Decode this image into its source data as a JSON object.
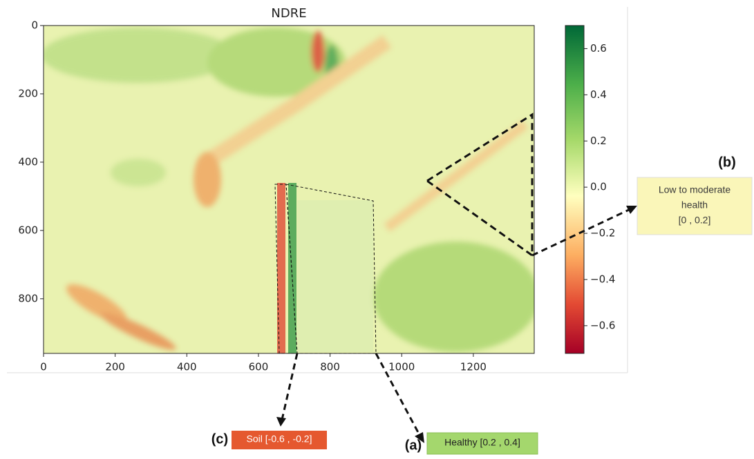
{
  "chart_data": {
    "type": "image",
    "title": "NDRE",
    "xlim": [
      0,
      1370
    ],
    "xticks": [
      0,
      200,
      400,
      600,
      800,
      1000,
      1200
    ],
    "ylim": [
      960,
      0
    ],
    "yticks": [
      0,
      200,
      400,
      600,
      800
    ],
    "colorbar": {
      "lim": [
        -0.72,
        0.7
      ],
      "ticks": [
        {
          "value": 0.6,
          "label": "0.6"
        },
        {
          "value": 0.4,
          "label": "0.4"
        },
        {
          "value": 0.2,
          "label": "0.2"
        },
        {
          "value": 0,
          "label": "0.0"
        },
        {
          "value": -0.2,
          "label": "−0.2"
        },
        {
          "value": -0.4,
          "label": "−0.4"
        },
        {
          "value": -0.6,
          "label": "−0.6"
        }
      ]
    },
    "annotations": [
      {
        "tag": "(a)",
        "lines": [
          "Healthy [0.2 , 0.4]"
        ]
      },
      {
        "tag": "(b)",
        "lines": [
          "Low to moderate",
          "health",
          "[0 , 0.2]"
        ]
      },
      {
        "tag": "(c)",
        "lines": [
          "Soil [-0.6 , -0.2]"
        ]
      }
    ]
  }
}
